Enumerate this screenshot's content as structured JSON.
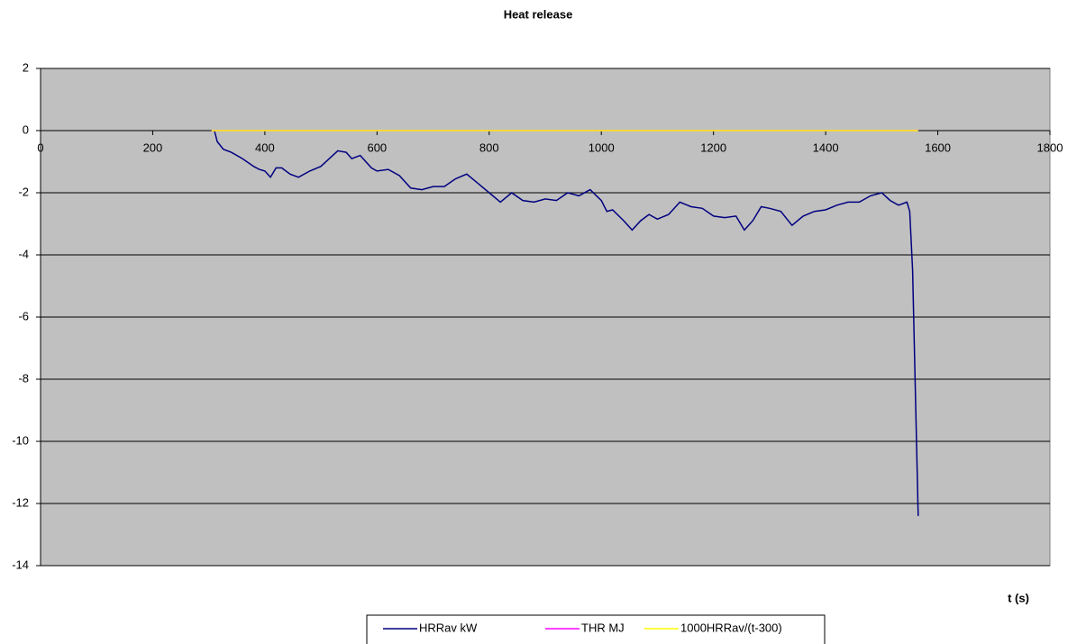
{
  "chart_data": {
    "type": "line",
    "title": "Heat release",
    "x_label": "t (s)",
    "xlim": [
      0,
      1800
    ],
    "xticks": [
      0,
      200,
      400,
      600,
      800,
      1000,
      1200,
      1400,
      1600,
      1800
    ],
    "ylim": [
      -14,
      2
    ],
    "yticks": [
      -14,
      -12,
      -10,
      -8,
      -6,
      -4,
      -2,
      0,
      2
    ],
    "grid": true,
    "legend": "bottom",
    "series": [
      {
        "name": "HRRav kW",
        "color": "#000080",
        "x": [
          310,
          315,
          326,
          340,
          360,
          380,
          390,
          400,
          410,
          420,
          430,
          445,
          460,
          480,
          500,
          515,
          530,
          545,
          555,
          570,
          590,
          600,
          620,
          640,
          660,
          680,
          700,
          720,
          740,
          760,
          780,
          800,
          820,
          840,
          860,
          880,
          900,
          920,
          940,
          960,
          980,
          1000,
          1010,
          1020,
          1040,
          1055,
          1070,
          1085,
          1100,
          1120,
          1140,
          1160,
          1180,
          1200,
          1220,
          1240,
          1255,
          1270,
          1285,
          1300,
          1320,
          1340,
          1360,
          1380,
          1400,
          1420,
          1440,
          1460,
          1480,
          1500,
          1515,
          1530,
          1545,
          1550,
          1555,
          1565
        ],
        "values": [
          0,
          -0.35,
          -0.6,
          -0.7,
          -0.9,
          -1.15,
          -1.25,
          -1.3,
          -1.5,
          -1.2,
          -1.2,
          -1.4,
          -1.5,
          -1.3,
          -1.15,
          -0.9,
          -0.65,
          -0.7,
          -0.9,
          -0.8,
          -1.2,
          -1.3,
          -1.25,
          -1.45,
          -1.85,
          -1.9,
          -1.8,
          -1.8,
          -1.55,
          -1.4,
          -1.7,
          -2.0,
          -2.3,
          -2.0,
          -2.25,
          -2.3,
          -2.2,
          -2.25,
          -2.0,
          -2.1,
          -1.9,
          -2.25,
          -2.6,
          -2.55,
          -2.9,
          -3.2,
          -2.9,
          -2.7,
          -2.85,
          -2.7,
          -2.3,
          -2.45,
          -2.5,
          -2.75,
          -2.8,
          -2.75,
          -3.2,
          -2.9,
          -2.45,
          -2.5,
          -2.6,
          -3.05,
          -2.75,
          -2.6,
          -2.55,
          -2.4,
          -2.3,
          -2.3,
          -2.1,
          -2.0,
          -2.25,
          -2.4,
          -2.3,
          -2.6,
          -4.5,
          -12.4
        ]
      },
      {
        "name": "THR MJ",
        "color": "#ff00ff",
        "x": [
          305,
          1565
        ],
        "values": [
          0,
          0
        ]
      },
      {
        "name": "1000HRRav/(t-300)",
        "color": "#ffff00",
        "x": [
          305,
          1565
        ],
        "values": [
          0,
          0
        ]
      }
    ]
  }
}
